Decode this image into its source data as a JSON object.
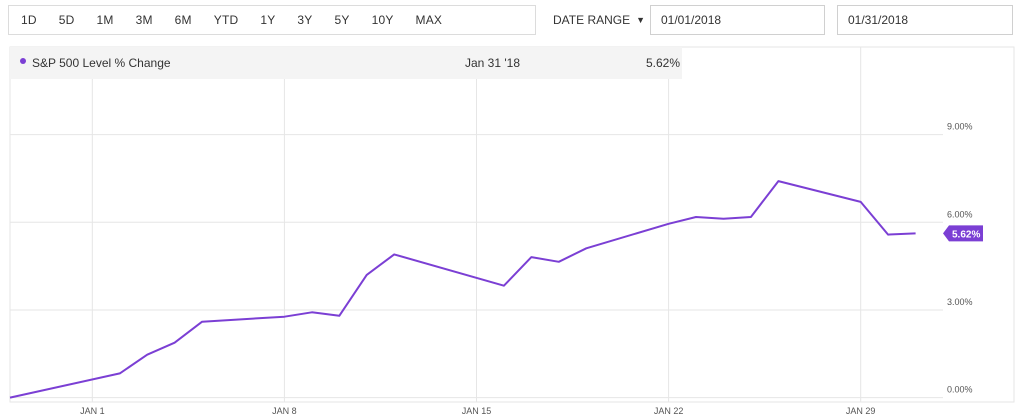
{
  "toolbar": {
    "ranges": [
      "1D",
      "5D",
      "1M",
      "3M",
      "6M",
      "YTD",
      "1Y",
      "3Y",
      "5Y",
      "10Y",
      "MAX"
    ],
    "date_range_label": "DATE RANGE",
    "start_date": "01/01/2018",
    "end_date": "01/31/2018"
  },
  "tooltip": {
    "series": "S&P 500 Level % Change",
    "date": "Jan 31 '18",
    "value": "5.62%"
  },
  "colors": {
    "series": "#7b3fd4",
    "grid": "#e6e6e6"
  },
  "chart_data": {
    "type": "line",
    "series": [
      {
        "name": "S&P 500 Level % Change",
        "x": [
          "2017-12-29",
          "2018-01-02",
          "2018-01-03",
          "2018-01-04",
          "2018-01-05",
          "2018-01-08",
          "2018-01-09",
          "2018-01-10",
          "2018-01-11",
          "2018-01-12",
          "2018-01-16",
          "2018-01-17",
          "2018-01-18",
          "2018-01-19",
          "2018-01-22",
          "2018-01-23",
          "2018-01-24",
          "2018-01-25",
          "2018-01-26",
          "2018-01-29",
          "2018-01-30",
          "2018-01-31"
        ],
        "values": [
          0.0,
          0.83,
          1.47,
          1.88,
          2.6,
          2.77,
          2.92,
          2.8,
          4.2,
          4.9,
          3.83,
          4.81,
          4.65,
          5.11,
          5.95,
          6.18,
          6.12,
          6.18,
          7.41,
          6.7,
          5.58,
          5.62
        ]
      }
    ],
    "x_ticks": [
      "JAN 1",
      "JAN 8",
      "JAN 15",
      "JAN 22",
      "JAN 29"
    ],
    "x_tick_dates": [
      "2018-01-01",
      "2018-01-08",
      "2018-01-15",
      "2018-01-22",
      "2018-01-29"
    ],
    "y_ticks": [
      "0.00%",
      "3.00%",
      "6.00%",
      "9.00%"
    ],
    "y_tick_values": [
      0,
      3,
      6,
      9
    ],
    "ylim": [
      -0.15,
      12
    ],
    "xlim": [
      "2017-12-29",
      "2018-02-01"
    ],
    "last_value_label": "5.62%",
    "grid": true,
    "y_axis_position": "right"
  }
}
